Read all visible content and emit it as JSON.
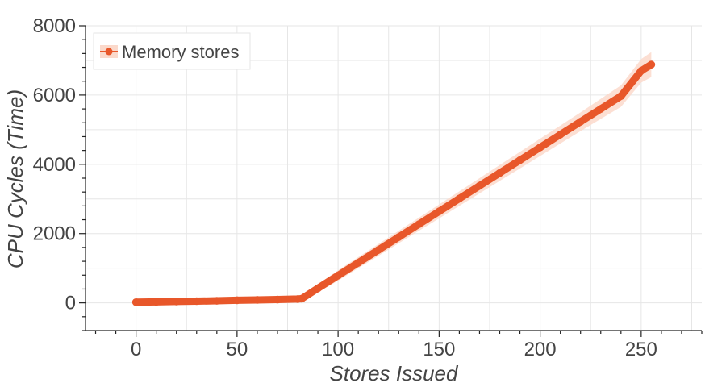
{
  "chart_data": {
    "type": "line",
    "title": "",
    "xlabel": "Stores Issued",
    "ylabel": "CPU Cycles (Time)",
    "xlim": [
      -25,
      280
    ],
    "ylim": [
      -800,
      8000
    ],
    "x_ticks": [
      0,
      50,
      100,
      150,
      200,
      250
    ],
    "y_ticks": [
      0,
      2000,
      4000,
      6000,
      8000
    ],
    "grid": true,
    "legend_position": "top-left",
    "series": [
      {
        "name": "Memory stores",
        "color": "#e8572a",
        "band_color": "#fbd9cb",
        "x": [
          0,
          10,
          20,
          30,
          40,
          50,
          60,
          70,
          80,
          82,
          90,
          100,
          110,
          120,
          130,
          140,
          150,
          160,
          170,
          180,
          190,
          200,
          210,
          220,
          230,
          240,
          250,
          255
        ],
        "y": [
          20,
          30,
          40,
          50,
          60,
          75,
          85,
          95,
          110,
          120,
          420,
          790,
          1160,
          1530,
          1900,
          2270,
          2640,
          3010,
          3380,
          3750,
          4120,
          4490,
          4860,
          5230,
          5600,
          5970,
          6700,
          6880
        ],
        "band_halfwidth": [
          30,
          30,
          30,
          35,
          35,
          40,
          40,
          45,
          50,
          60,
          120,
          150,
          160,
          170,
          180,
          190,
          200,
          210,
          220,
          230,
          240,
          250,
          260,
          270,
          290,
          310,
          340,
          360
        ]
      }
    ]
  }
}
